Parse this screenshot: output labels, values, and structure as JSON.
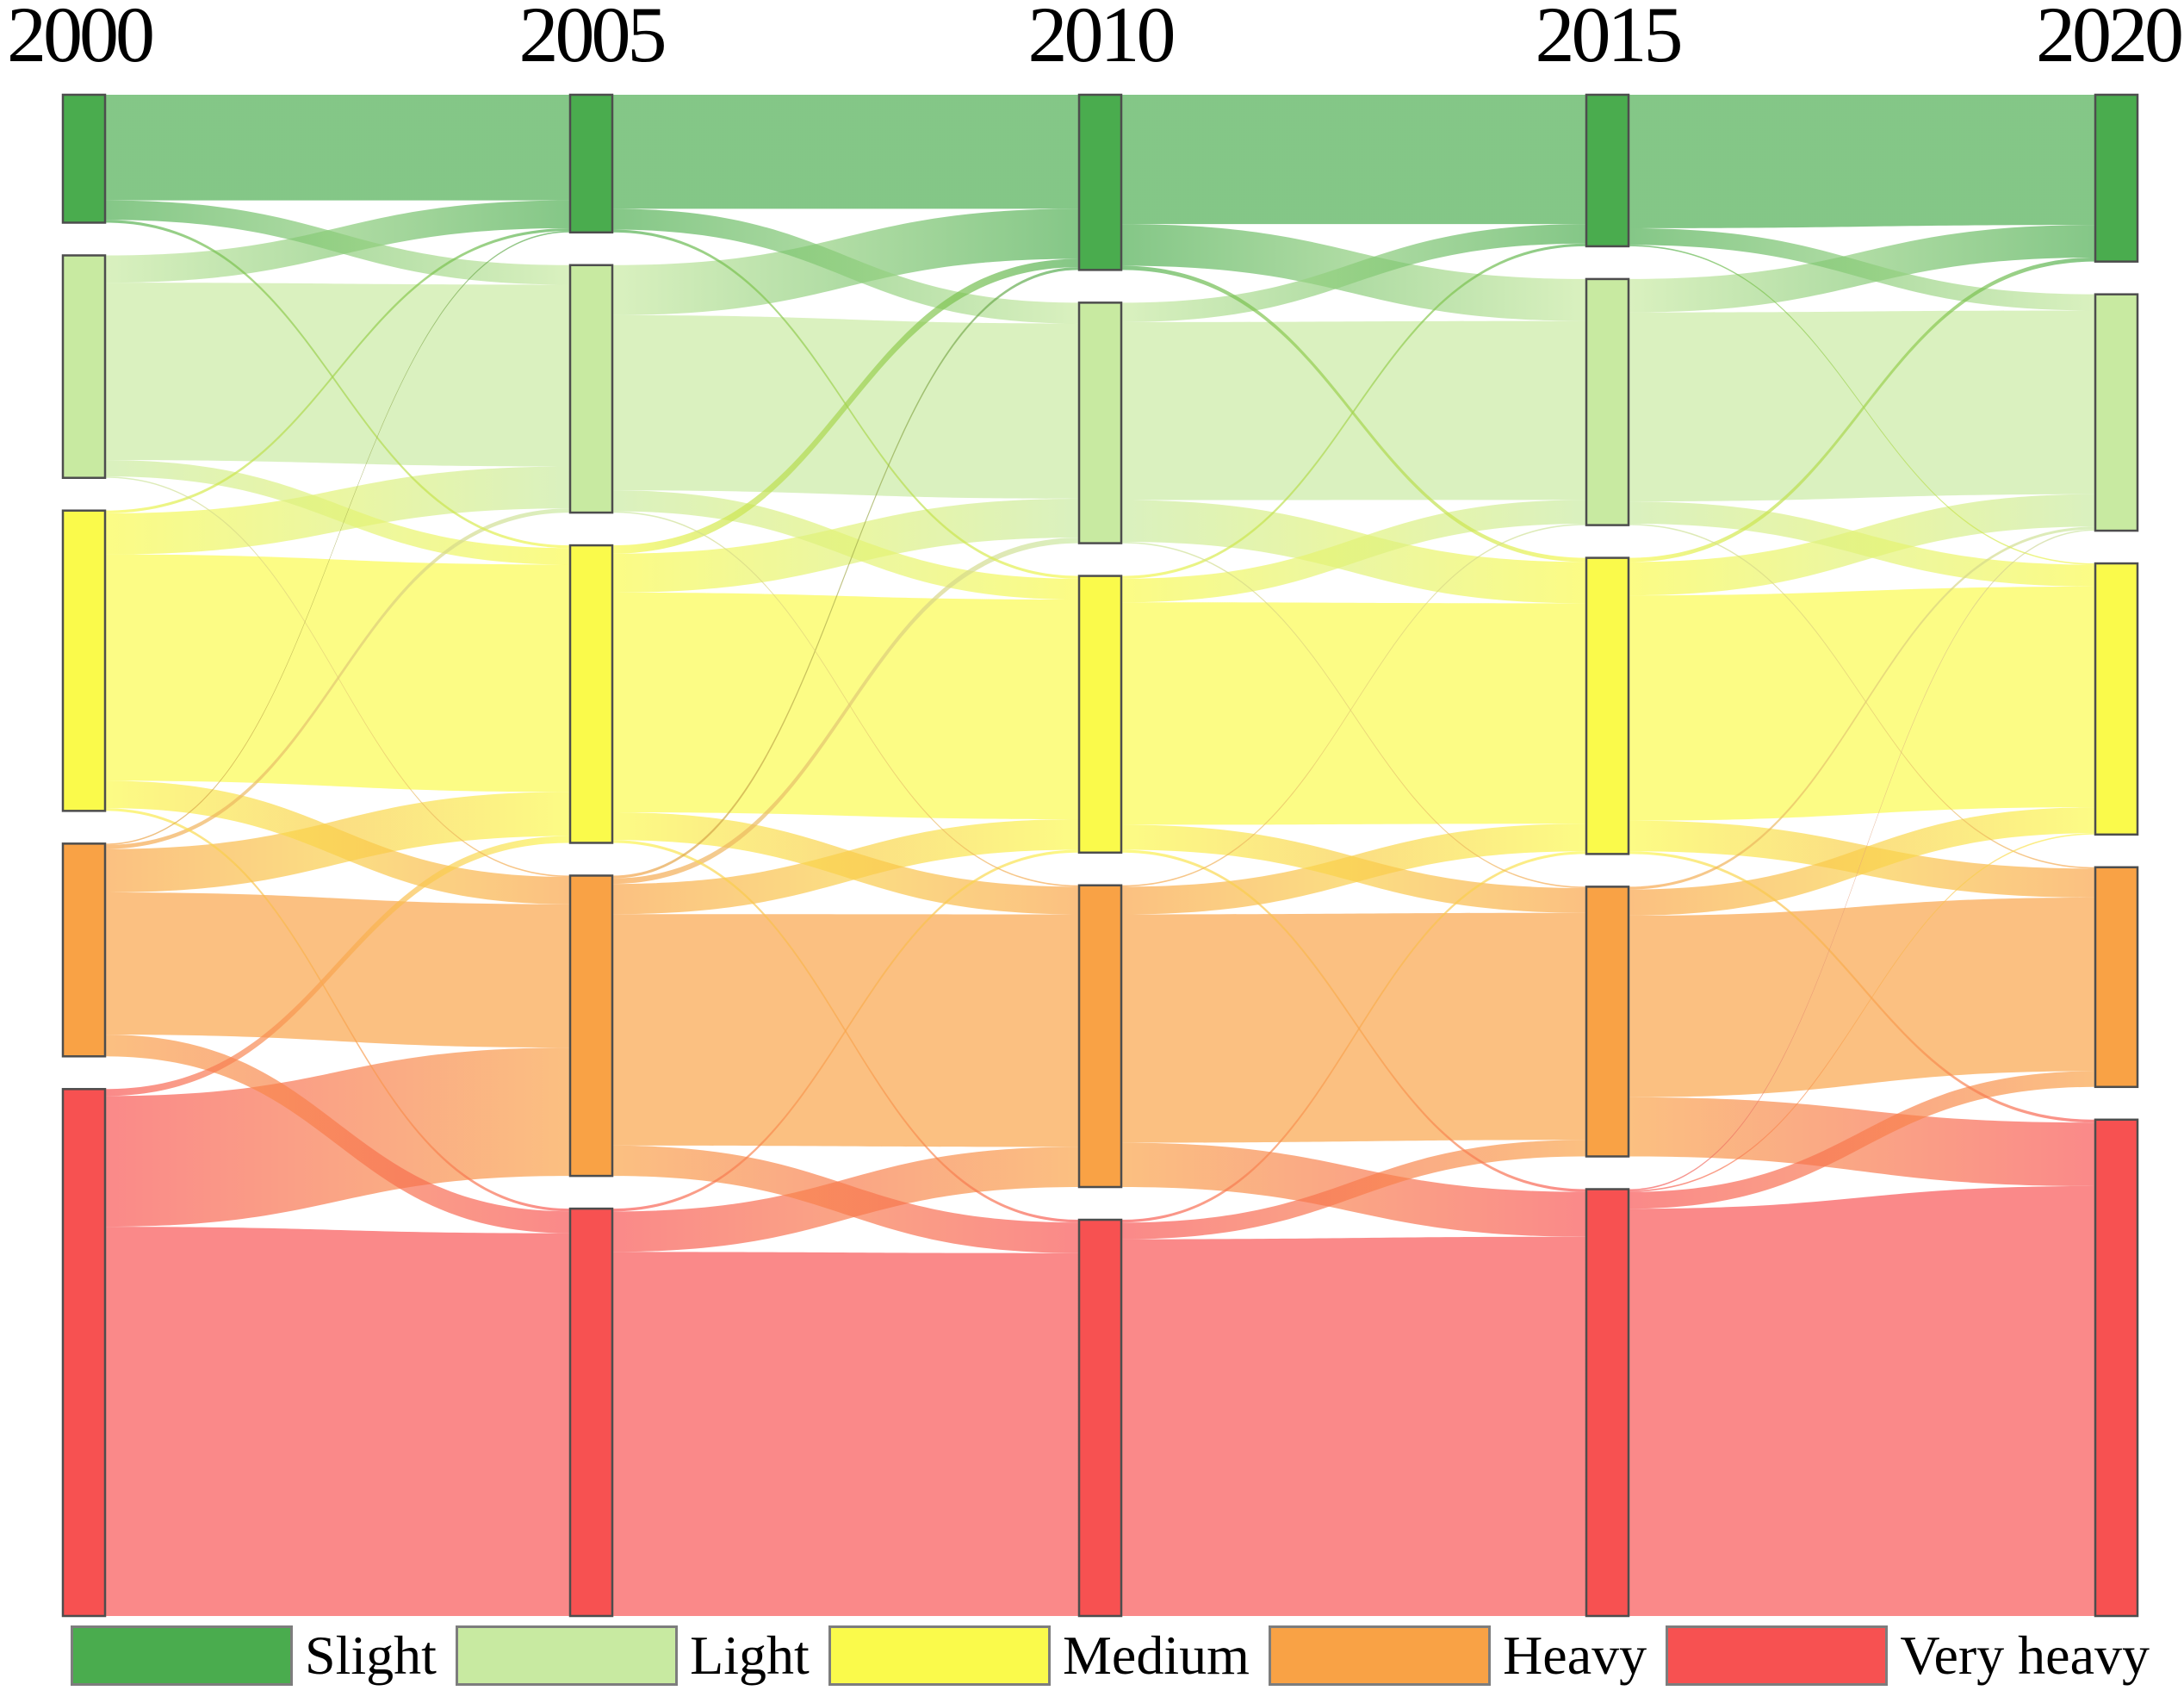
{
  "chart_data": {
    "type": "sankey",
    "title": "",
    "description_visible": false,
    "years": [
      "2000",
      "2005",
      "2010",
      "2015",
      "2020"
    ],
    "categories": [
      {
        "label": "Slight",
        "color": "#4AAC4E"
      },
      {
        "label": "Light",
        "color": "#C8EAA1"
      },
      {
        "label": "Medium",
        "color": "#FAFA4B"
      },
      {
        "label": "Heavy",
        "color": "#F9A245"
      },
      {
        "label": "Very heavy",
        "color": "#F75151"
      }
    ],
    "node_values_percent": {
      "2000": [
        9.2,
        16.0,
        21.6,
        15.3,
        37.9
      ],
      "2005": [
        9.9,
        17.8,
        21.4,
        21.6,
        29.3
      ],
      "2010": [
        12.6,
        17.3,
        19.9,
        21.7,
        28.5
      ],
      "2015": [
        10.9,
        17.7,
        21.3,
        19.4,
        30.7
      ],
      "2020": [
        12.0,
        17.0,
        19.5,
        15.8,
        35.7
      ]
    },
    "links": [
      {
        "from_year": "2000",
        "to_year": "2005",
        "flows": [
          [
            0,
            0,
            7.6
          ],
          [
            0,
            1,
            1.4
          ],
          [
            0,
            2,
            0.2
          ],
          [
            1,
            0,
            2.0
          ],
          [
            1,
            1,
            13.0
          ],
          [
            1,
            2,
            1.2
          ],
          [
            1,
            3,
            0.1
          ],
          [
            2,
            0,
            0.2
          ],
          [
            2,
            1,
            3.0
          ],
          [
            2,
            2,
            16.5
          ],
          [
            2,
            3,
            2.0
          ],
          [
            2,
            4,
            0.2
          ],
          [
            3,
            0,
            0.1
          ],
          [
            3,
            1,
            0.3
          ],
          [
            3,
            2,
            3.2
          ],
          [
            3,
            3,
            10.5
          ],
          [
            3,
            4,
            1.6
          ],
          [
            4,
            2,
            0.5
          ],
          [
            4,
            3,
            9.4
          ],
          [
            4,
            4,
            28.0
          ]
        ]
      },
      {
        "from_year": "2005",
        "to_year": "2010",
        "flows": [
          [
            0,
            0,
            8.2
          ],
          [
            0,
            1,
            1.5
          ],
          [
            0,
            2,
            0.2
          ],
          [
            1,
            0,
            3.6
          ],
          [
            1,
            1,
            12.6
          ],
          [
            1,
            2,
            1.5
          ],
          [
            1,
            3,
            0.1
          ],
          [
            2,
            0,
            0.6
          ],
          [
            2,
            1,
            2.8
          ],
          [
            2,
            2,
            15.8
          ],
          [
            2,
            3,
            2.0
          ],
          [
            2,
            4,
            0.2
          ],
          [
            3,
            0,
            0.2
          ],
          [
            3,
            1,
            0.4
          ],
          [
            3,
            2,
            2.2
          ],
          [
            3,
            3,
            16.8
          ],
          [
            3,
            4,
            2.2
          ],
          [
            4,
            2,
            0.2
          ],
          [
            4,
            3,
            2.9
          ],
          [
            4,
            4,
            26.1
          ]
        ]
      },
      {
        "from_year": "2010",
        "to_year": "2015",
        "flows": [
          [
            0,
            0,
            9.3
          ],
          [
            0,
            1,
            3.0
          ],
          [
            0,
            2,
            0.3
          ],
          [
            1,
            0,
            1.4
          ],
          [
            1,
            1,
            12.8
          ],
          [
            1,
            2,
            3.0
          ],
          [
            1,
            3,
            0.1
          ],
          [
            2,
            0,
            0.2
          ],
          [
            2,
            1,
            1.7
          ],
          [
            2,
            2,
            16.0
          ],
          [
            2,
            3,
            1.8
          ],
          [
            2,
            4,
            0.2
          ],
          [
            3,
            1,
            0.1
          ],
          [
            3,
            2,
            2.0
          ],
          [
            3,
            3,
            16.5
          ],
          [
            3,
            4,
            3.2
          ],
          [
            4,
            2,
            0.2
          ],
          [
            4,
            3,
            1.2
          ],
          [
            4,
            4,
            27.1
          ]
        ]
      },
      {
        "from_year": "2015",
        "to_year": "2020",
        "flows": [
          [
            0,
            0,
            9.6
          ],
          [
            0,
            1,
            1.2
          ],
          [
            0,
            2,
            0.1
          ],
          [
            1,
            0,
            2.4
          ],
          [
            1,
            1,
            13.6
          ],
          [
            1,
            2,
            1.6
          ],
          [
            1,
            3,
            0.1
          ],
          [
            2,
            0,
            0.3
          ],
          [
            2,
            1,
            2.4
          ],
          [
            2,
            2,
            16.2
          ],
          [
            2,
            3,
            2.2
          ],
          [
            2,
            4,
            0.2
          ],
          [
            3,
            1,
            0.2
          ],
          [
            3,
            2,
            1.9
          ],
          [
            3,
            3,
            13.2
          ],
          [
            3,
            4,
            4.3
          ],
          [
            4,
            1,
            0.1
          ],
          [
            4,
            2,
            0.1
          ],
          [
            4,
            3,
            1.2
          ],
          [
            4,
            4,
            29.1
          ]
        ]
      }
    ],
    "legend_position": "bottom",
    "legend_labels": [
      "Slight",
      "Light",
      "Medium",
      "Heavy",
      "Very heavy"
    ],
    "node_border_color": "#4d4d4d",
    "legend_swatch_border_color": "#7d7d7d",
    "flow_opacity": 0.68
  }
}
